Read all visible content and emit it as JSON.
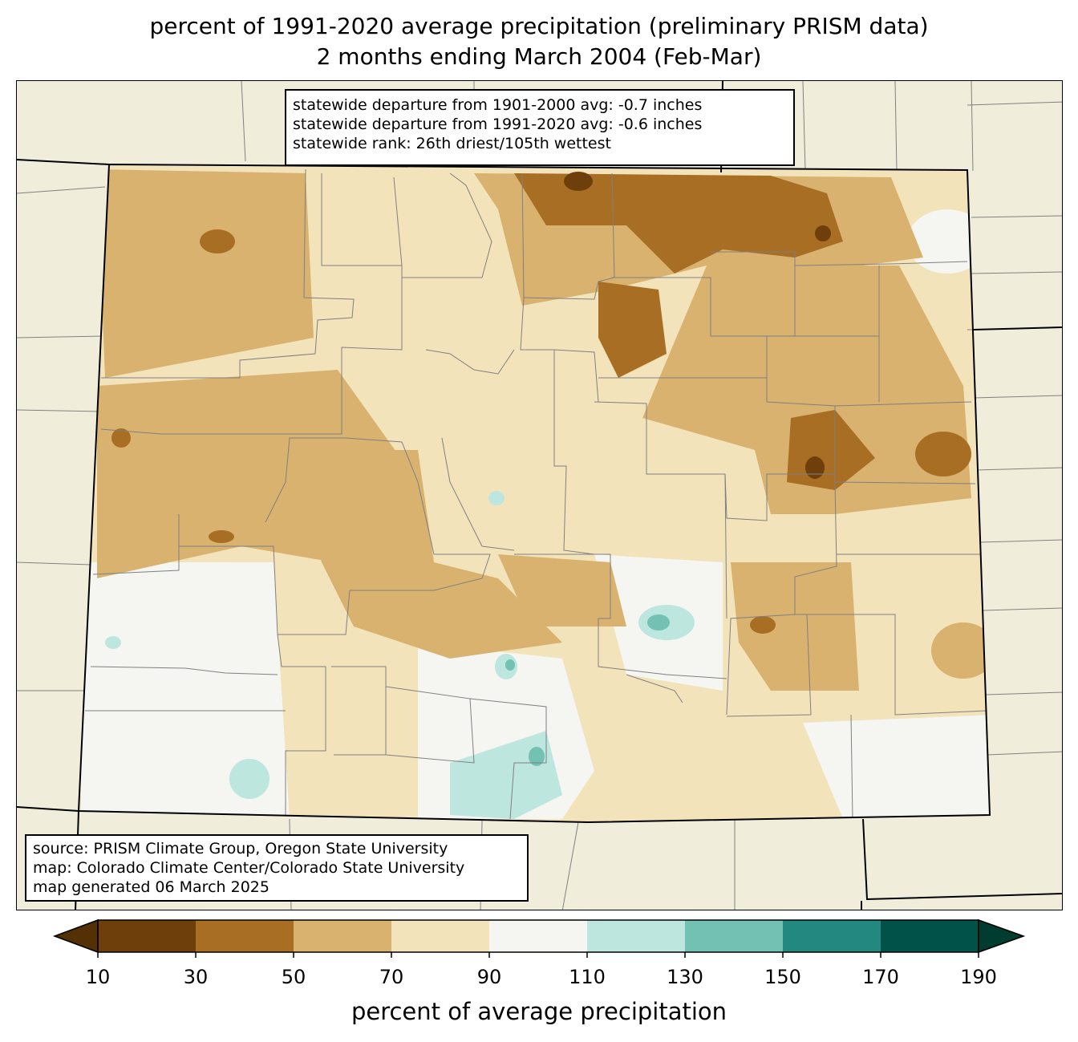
{
  "title": {
    "line1": "percent of 1991-2020 average precipitation (preliminary PRISM data)",
    "line2": "2 months ending March 2004 (Feb-Mar)"
  },
  "stats": {
    "line1": "statewide departure from 1901-2000 avg: -0.7 inches",
    "line2": "statewide departure from 1991-2020 avg: -0.6 inches",
    "line3": "statewide rank: 26th driest/105th wettest"
  },
  "source": {
    "line1": "source: PRISM Climate Group, Oregon State University",
    "line2": "map: Colorado Climate Center/Colorado State University",
    "line3": "map generated 06 March 2025"
  },
  "colorbar": {
    "label": "percent of average precipitation",
    "ticks": [
      "10",
      "30",
      "50",
      "70",
      "90",
      "110",
      "130",
      "150",
      "170",
      "190"
    ],
    "colors": {
      "under": "#543005",
      "bins": [
        "#6e3f0a",
        "#a86e24",
        "#d8b26e",
        "#f3e3bb",
        "#f5f5f2",
        "#bde6df",
        "#72c1b3",
        "#238980",
        "#01534a"
      ],
      "over": "#003c30"
    }
  },
  "map_colors": {
    "background": "#f0eedb",
    "state_border": "#000000",
    "county_border": "#808080"
  }
}
